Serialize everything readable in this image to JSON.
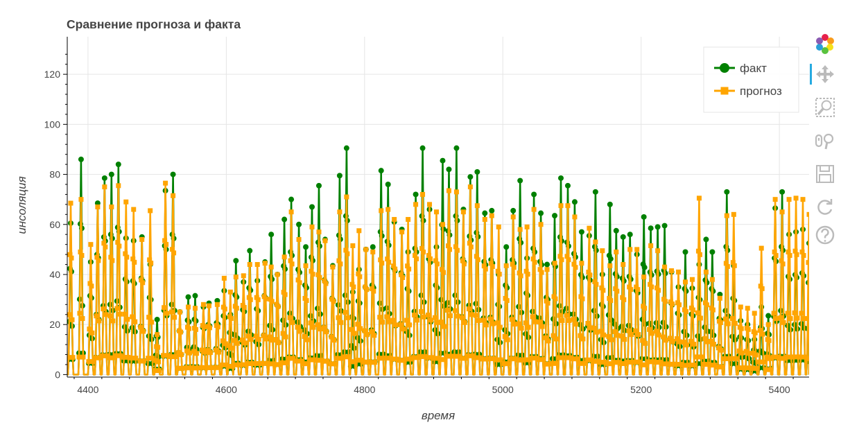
{
  "chart_data": {
    "type": "line",
    "title": "Сравнение прогноза и факта",
    "xlabel": "время",
    "ylabel": "инсоляция",
    "xlim": [
      4370,
      5443
    ],
    "ylim": [
      -1,
      135
    ],
    "x_ticks": [
      4400,
      4600,
      4800,
      5000,
      5200,
      5400
    ],
    "y_ticks": [
      0,
      20,
      40,
      60,
      80,
      100,
      120
    ],
    "grid": true,
    "legend_position": "top-right",
    "period": 10,
    "series": [
      {
        "name": "факт",
        "color": "#008000",
        "marker": "circle",
        "daily_peaks": [
          [
            4375,
            60.5
          ],
          [
            4390,
            86
          ],
          [
            4404,
            45
          ],
          [
            4414,
            68.5
          ],
          [
            4424,
            78.5
          ],
          [
            4434,
            80
          ],
          [
            4444,
            84
          ],
          [
            4455,
            54.5
          ],
          [
            4466,
            53.5
          ],
          [
            4478,
            55
          ],
          [
            4490,
            44
          ],
          [
            4500,
            22
          ],
          [
            4512,
            73.5
          ],
          [
            4523,
            80
          ],
          [
            4533,
            25
          ],
          [
            4545,
            31
          ],
          [
            4555,
            31.5
          ],
          [
            4567,
            27
          ],
          [
            4575,
            28.5
          ],
          [
            4587,
            29.5
          ],
          [
            4597,
            33.5
          ],
          [
            4606,
            24
          ],
          [
            4614,
            45.5
          ],
          [
            4625,
            37
          ],
          [
            4634,
            49.5
          ],
          [
            4645,
            37.5
          ],
          [
            4656,
            45
          ],
          [
            4665,
            56
          ],
          [
            4674,
            40
          ],
          [
            4684,
            62
          ],
          [
            4694,
            70
          ],
          [
            4705,
            60
          ],
          [
            4715,
            51
          ],
          [
            4724,
            67
          ],
          [
            4734,
            75.5
          ],
          [
            4743,
            54
          ],
          [
            4754,
            43.5
          ],
          [
            4764,
            79.5
          ],
          [
            4774,
            90.5
          ],
          [
            4783,
            33
          ],
          [
            4792,
            42
          ],
          [
            4802,
            50
          ],
          [
            4812,
            51
          ],
          [
            4824,
            81.5
          ],
          [
            4834,
            76
          ],
          [
            4843,
            61
          ],
          [
            4854,
            58
          ],
          [
            4863,
            49
          ],
          [
            4874,
            72
          ],
          [
            4884,
            90.5
          ],
          [
            4894,
            66
          ],
          [
            4904,
            51
          ],
          [
            4913,
            85.5
          ],
          [
            4922,
            82
          ],
          [
            4933,
            90.5
          ],
          [
            4943,
            66
          ],
          [
            4953,
            79
          ],
          [
            4963,
            81
          ],
          [
            4974,
            64.5
          ],
          [
            4984,
            65.5
          ],
          [
            4994,
            40
          ],
          [
            5005,
            51
          ],
          [
            5015,
            65.5
          ],
          [
            5025,
            77.5
          ],
          [
            5035,
            46.5
          ],
          [
            5045,
            72
          ],
          [
            5055,
            64.5
          ],
          [
            5064,
            44
          ],
          [
            5075,
            63.5
          ],
          [
            5084,
            78.5
          ],
          [
            5094,
            75.5
          ],
          [
            5104,
            69
          ],
          [
            5114,
            57
          ],
          [
            5125,
            55.5
          ],
          [
            5134,
            73
          ],
          [
            5144,
            40
          ],
          [
            5155,
            68
          ],
          [
            5164,
            57.5
          ],
          [
            5174,
            55
          ],
          [
            5184,
            56
          ],
          [
            5194,
            48
          ],
          [
            5204,
            63
          ],
          [
            5214,
            58.5
          ],
          [
            5224,
            59
          ],
          [
            5234,
            59.5
          ],
          [
            5244,
            41
          ],
          [
            5254,
            35
          ],
          [
            5264,
            49
          ],
          [
            5274,
            34.5
          ],
          [
            5284,
            44
          ],
          [
            5294,
            54
          ],
          [
            5303,
            49
          ],
          [
            5314,
            32
          ],
          [
            5324,
            73
          ],
          [
            5334,
            43.5
          ],
          [
            5344,
            21.5
          ],
          [
            5354,
            20
          ],
          [
            5364,
            14
          ],
          [
            5374,
            27
          ],
          [
            5384,
            23.5
          ],
          [
            5394,
            66.5
          ],
          [
            5404,
            73
          ],
          [
            5414,
            56
          ],
          [
            5424,
            57
          ],
          [
            5434,
            58
          ],
          [
            5443,
            52.5
          ]
        ]
      },
      {
        "name": "прогноз",
        "color": "#ffa500",
        "marker": "square",
        "daily_peaks": [
          [
            4375,
            68.5
          ],
          [
            4390,
            70
          ],
          [
            4404,
            52
          ],
          [
            4414,
            67
          ],
          [
            4424,
            75
          ],
          [
            4434,
            67
          ],
          [
            4444,
            75.5
          ],
          [
            4455,
            69
          ],
          [
            4466,
            66
          ],
          [
            4478,
            54
          ],
          [
            4490,
            65.5
          ],
          [
            4500,
            16
          ],
          [
            4512,
            76.5
          ],
          [
            4523,
            71.5
          ],
          [
            4533,
            25
          ],
          [
            4545,
            27
          ],
          [
            4555,
            26.5
          ],
          [
            4567,
            28
          ],
          [
            4575,
            27.5
          ],
          [
            4587,
            28
          ],
          [
            4597,
            38.5
          ],
          [
            4606,
            33
          ],
          [
            4614,
            39
          ],
          [
            4625,
            39.5
          ],
          [
            4634,
            44
          ],
          [
            4645,
            44
          ],
          [
            4656,
            44.5
          ],
          [
            4665,
            43
          ],
          [
            4674,
            40
          ],
          [
            4684,
            47
          ],
          [
            4694,
            65
          ],
          [
            4705,
            54
          ],
          [
            4715,
            43.5
          ],
          [
            4724,
            59
          ],
          [
            4734,
            57
          ],
          [
            4743,
            53.5
          ],
          [
            4754,
            43
          ],
          [
            4764,
            65
          ],
          [
            4774,
            71
          ],
          [
            4783,
            51.5
          ],
          [
            4792,
            57.5
          ],
          [
            4802,
            50
          ],
          [
            4812,
            49
          ],
          [
            4824,
            65.5
          ],
          [
            4834,
            66
          ],
          [
            4843,
            62
          ],
          [
            4854,
            57
          ],
          [
            4863,
            62
          ],
          [
            4874,
            68
          ],
          [
            4884,
            72
          ],
          [
            4894,
            68
          ],
          [
            4904,
            65
          ],
          [
            4913,
            60
          ],
          [
            4922,
            73.5
          ],
          [
            4933,
            73
          ],
          [
            4943,
            65
          ],
          [
            4953,
            75
          ],
          [
            4963,
            67.5
          ],
          [
            4974,
            62
          ],
          [
            4984,
            63.5
          ],
          [
            4994,
            59
          ],
          [
            5005,
            43.5
          ],
          [
            5015,
            63
          ],
          [
            5025,
            58
          ],
          [
            5035,
            59
          ],
          [
            5045,
            66
          ],
          [
            5055,
            60
          ],
          [
            5064,
            42
          ],
          [
            5075,
            44.5
          ],
          [
            5084,
            67.5
          ],
          [
            5094,
            67.5
          ],
          [
            5104,
            63
          ],
          [
            5114,
            44.5
          ],
          [
            5125,
            58.5
          ],
          [
            5134,
            53
          ],
          [
            5144,
            49.5
          ],
          [
            5155,
            43.5
          ],
          [
            5164,
            49
          ],
          [
            5174,
            44
          ],
          [
            5184,
            50
          ],
          [
            5194,
            50
          ],
          [
            5204,
            39
          ],
          [
            5214,
            51.5
          ],
          [
            5224,
            49.5
          ],
          [
            5234,
            43
          ],
          [
            5244,
            41.5
          ],
          [
            5254,
            41
          ],
          [
            5264,
            37
          ],
          [
            5274,
            38
          ],
          [
            5284,
            70.5
          ],
          [
            5294,
            41
          ],
          [
            5303,
            38
          ],
          [
            5314,
            30.5
          ],
          [
            5324,
            63.5
          ],
          [
            5334,
            64
          ],
          [
            5344,
            27
          ],
          [
            5354,
            26.5
          ],
          [
            5364,
            24.5
          ],
          [
            5374,
            50.5
          ],
          [
            5384,
            20
          ],
          [
            5394,
            70
          ],
          [
            5404,
            65
          ],
          [
            5414,
            70
          ],
          [
            5424,
            70.5
          ],
          [
            5434,
            70
          ],
          [
            5443,
            64
          ]
        ]
      }
    ]
  },
  "toolbar": {
    "tools": [
      "bokeh-logo-icon",
      "pan-icon",
      "box-zoom-icon",
      "wheel-zoom-icon",
      "save-icon",
      "reset-icon",
      "help-icon"
    ]
  }
}
